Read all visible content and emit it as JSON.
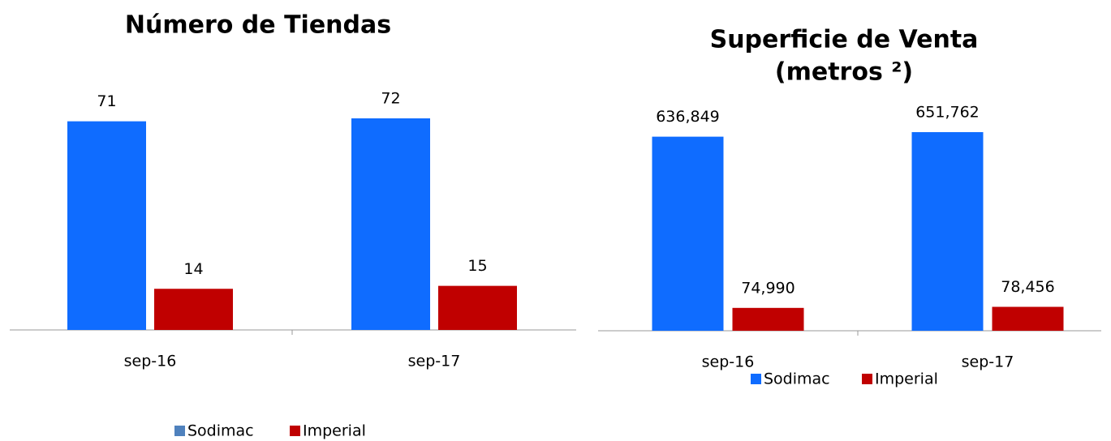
{
  "chart_data": [
    {
      "type": "bar",
      "title": [
        "Número de Tiendas"
      ],
      "categories": [
        "sep-16",
        "sep-17"
      ],
      "series": [
        {
          "name": "Sodimac",
          "color": "#0f6cff",
          "values": [
            71,
            72
          ]
        },
        {
          "name": "Imperial",
          "color": "#c00000",
          "values": [
            14,
            15
          ]
        }
      ],
      "legend": "bottom"
    },
    {
      "type": "bar",
      "title": [
        "Superficie de Venta",
        "(metros ²)"
      ],
      "categories": [
        "sep-16",
        "sep-17"
      ],
      "series": [
        {
          "name": "Sodimac",
          "color": "#0f6cff",
          "values": [
            636849,
            651762
          ],
          "value_labels": [
            "636,849",
            "651,762"
          ]
        },
        {
          "name": "Imperial",
          "color": "#c00000",
          "values": [
            74990,
            78456
          ],
          "value_labels": [
            "74,990",
            "78,456"
          ]
        }
      ],
      "legend": "bottom"
    }
  ]
}
